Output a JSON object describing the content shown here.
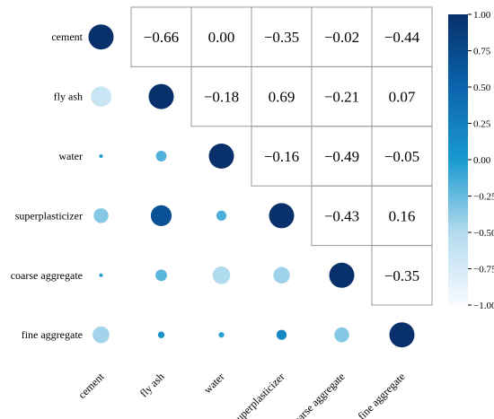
{
  "chart_data": {
    "type": "heatmap",
    "variables": [
      "cement",
      "fly ash",
      "water",
      "superplasticizer",
      "coarse aggregate",
      "fine aggregate"
    ],
    "matrix": [
      [
        1.0,
        -0.66,
        0.0,
        -0.35,
        -0.02,
        -0.44
      ],
      [
        -0.66,
        1.0,
        -0.18,
        0.69,
        -0.21,
        0.07
      ],
      [
        0.0,
        -0.18,
        1.0,
        -0.16,
        -0.49,
        -0.05
      ],
      [
        -0.35,
        0.69,
        -0.16,
        1.0,
        -0.43,
        0.16
      ],
      [
        -0.02,
        -0.21,
        -0.49,
        -0.43,
        1.0,
        -0.35
      ],
      [
        -0.44,
        0.07,
        -0.05,
        0.16,
        -0.35,
        1.0
      ]
    ],
    "upper_triangle": "numbers",
    "lower_triangle": "circles",
    "colorbar": {
      "range": [
        -1.0,
        1.0
      ],
      "ticks": [
        "1.00",
        "0.75",
        "0.50",
        "0.25",
        "0.00",
        "−0.25",
        "−0.50",
        "−0.75",
        "−1.00"
      ],
      "colors": {
        "low": "#f7fbff",
        "mid": "#1a9ad0",
        "high": "#08306b"
      }
    },
    "grid": true,
    "legend": "right"
  }
}
